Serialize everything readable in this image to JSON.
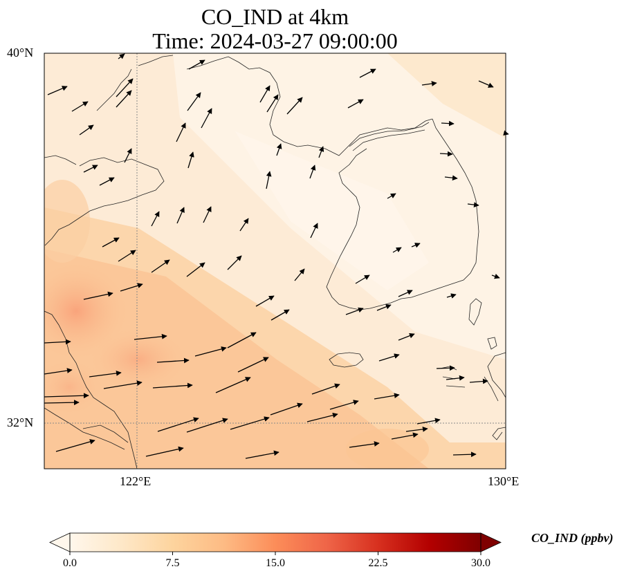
{
  "title": {
    "line1": "CO_IND at 4km",
    "line2": "Time: 2024-03-27 09:00:00"
  },
  "axes": {
    "lat_labels": [
      "40°N",
      "32°N"
    ],
    "lon_labels": [
      "122°E",
      "130°E"
    ],
    "lat_range": [
      31,
      40
    ],
    "lon_range": [
      120,
      130
    ]
  },
  "colorbar": {
    "label": "CO_IND (ppbv)",
    "ticks": [
      "0.0",
      "7.5",
      "15.0",
      "22.5",
      "30.0"
    ],
    "range": [
      0,
      30
    ],
    "colormap": "OrRd",
    "extend": "both",
    "colors": [
      "#fff7ec",
      "#fee8c8",
      "#fdd49e",
      "#fdbb84",
      "#fc8d59",
      "#ef6548",
      "#d7301f",
      "#b30000",
      "#7f0000"
    ]
  },
  "field": {
    "description_values": "CO concentration field, mostly 1-10 ppbv; maxima ~10-13 ppbv near Shanghai/Jiangsu coast"
  },
  "wind_arrows": "southwesterly to westerly wind vectors over Yellow Sea and Korean Peninsula"
}
